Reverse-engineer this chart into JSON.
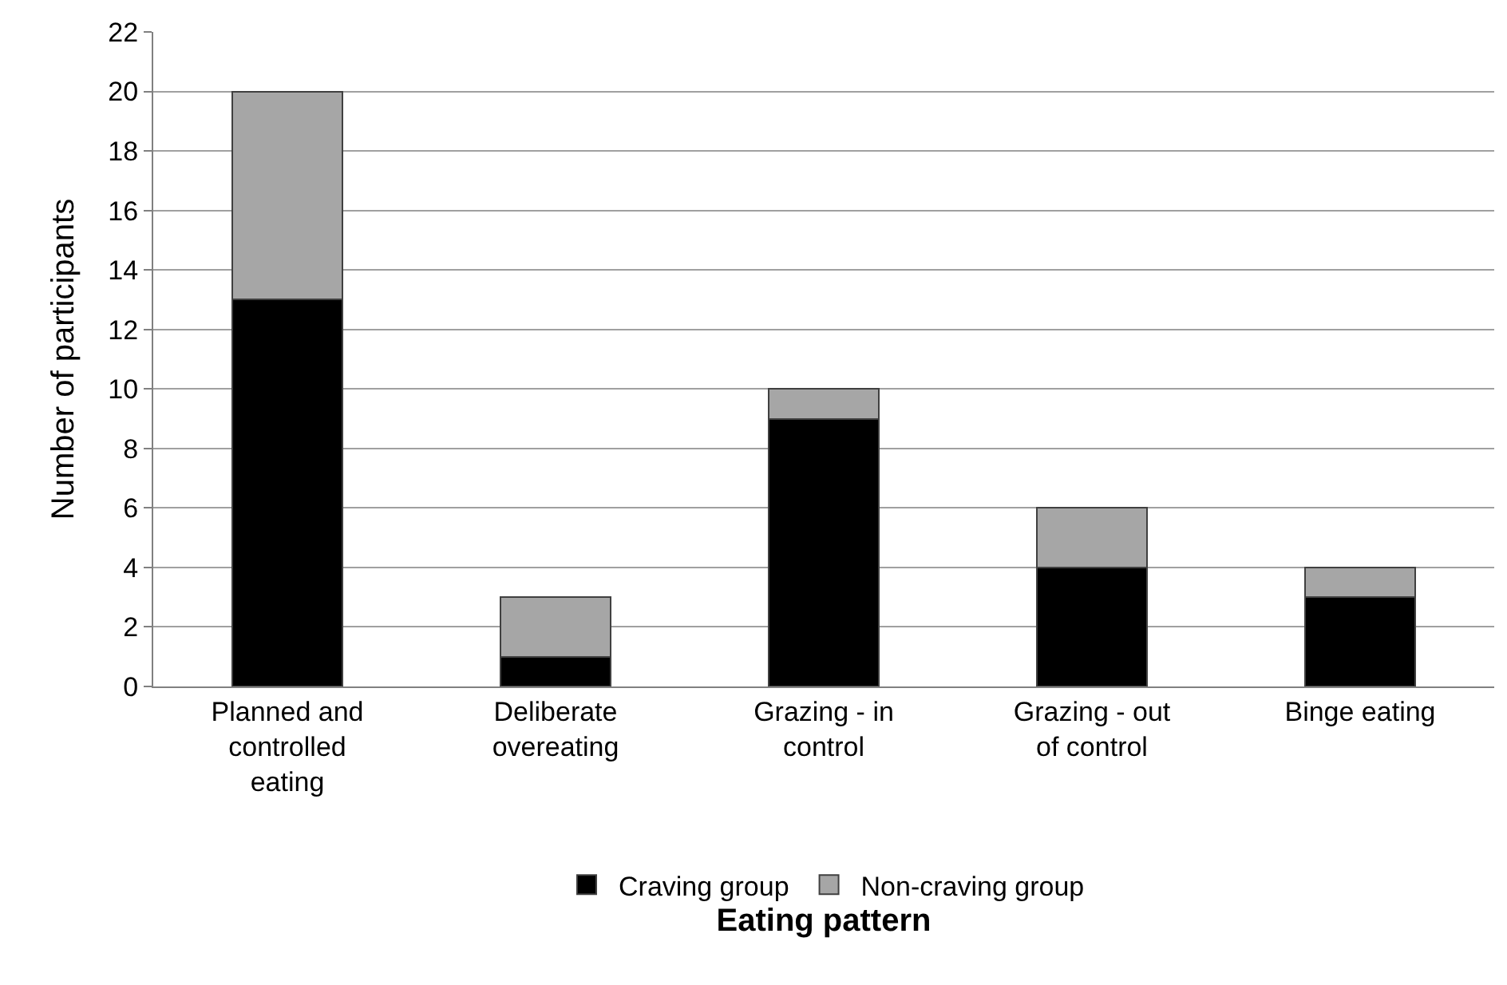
{
  "chart_data": {
    "type": "bar",
    "stacked": true,
    "xlabel": "Eating pattern",
    "ylabel": "Number of participants",
    "categories": [
      "Planned and controlled eating",
      "Deliberate overeating",
      "Grazing - in control",
      "Grazing - out of control",
      "Binge eating"
    ],
    "series": [
      {
        "name": "Craving group",
        "color": "#000000",
        "values": [
          13,
          1,
          9,
          4,
          3
        ]
      },
      {
        "name": "Non-craving group",
        "color": "#a6a6a6",
        "values": [
          7,
          2,
          1,
          2,
          1
        ]
      }
    ],
    "ylim": [
      0,
      22
    ],
    "yticks": [
      0,
      2,
      4,
      6,
      8,
      10,
      12,
      14,
      16,
      18,
      20,
      22
    ],
    "grid": "y",
    "legend": "bottom"
  }
}
